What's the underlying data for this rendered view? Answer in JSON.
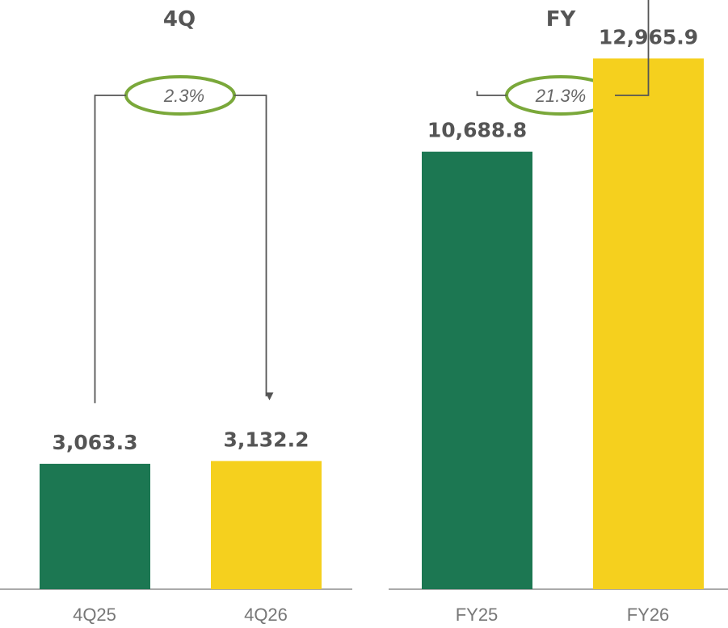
{
  "colors": {
    "prior_year": "#1c7752",
    "current_year": "#f5d01e",
    "growth_ellipse": "#7aa83a",
    "connector": "#555555",
    "baseline": "#aaaaaa",
    "text": "#555555"
  },
  "chart_data": [
    {
      "type": "bar",
      "title": "4Q",
      "categories": [
        "4Q25",
        "4Q26"
      ],
      "values": [
        3063.3,
        3132.2
      ],
      "value_labels": [
        "3,063.3",
        "3,132.2"
      ],
      "growth": "2.3%",
      "ylim": [
        0,
        14000
      ],
      "grid": false,
      "legend": "none"
    },
    {
      "type": "bar",
      "title": "FY",
      "categories": [
        "FY25",
        "FY26"
      ],
      "values": [
        10688.8,
        12965.9
      ],
      "value_labels": [
        "10,688.8",
        "12,965.9"
      ],
      "growth": "21.3%",
      "ylim": [
        0,
        14000
      ],
      "grid": false,
      "legend": "none"
    }
  ]
}
